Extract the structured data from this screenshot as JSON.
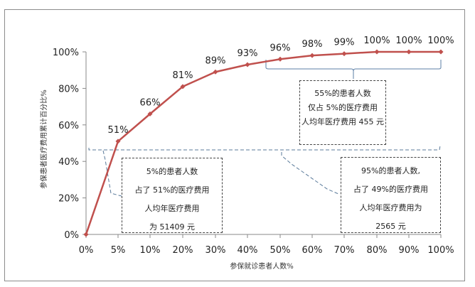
{
  "chart_data": {
    "type": "line",
    "title": "",
    "xlabel": "参保就诊患者人数%",
    "ylabel": "参保患者医疗费用累计百分比%",
    "categories": [
      "0%",
      "5%",
      "10%",
      "20%",
      "30%",
      "40%",
      "50%",
      "60%",
      "70%",
      "80%",
      "90%",
      "100%"
    ],
    "series": [
      {
        "name": "医疗费用累计百分比",
        "color": "#c0504d",
        "values": [
          0,
          51,
          66,
          81,
          89,
          93,
          96,
          98,
          99,
          100,
          100,
          100
        ],
        "data_labels": [
          "",
          "51%",
          "66%",
          "81%",
          "89%",
          "93%",
          "96%",
          "98%",
          "99%",
          "100%",
          "100%",
          "100%"
        ]
      }
    ],
    "y_ticks": [
      "0%",
      "20%",
      "40%",
      "60%",
      "80%",
      "100%"
    ],
    "ylim": [
      0,
      100
    ],
    "grid": false,
    "legend": "none",
    "annotations": [
      {
        "id": "top",
        "lines": [
          "55%的患者人数",
          "仅占 5%的医疗费用",
          "人均年医疗费用 455 元"
        ],
        "bracket": "covers 50%-100% x range"
      },
      {
        "id": "left",
        "lines": [
          "5%的患者人数",
          "占了 51%的医疗费用",
          "人均年医疗费用",
          "为 51409 元"
        ],
        "bracket": "covers 0%-5% x range"
      },
      {
        "id": "right",
        "lines": [
          "95%的患者人数,",
          "占了 49%的医疗费用",
          "人均年医疗费用为",
          "2565 元"
        ],
        "bracket": "covers 5%-100% x range"
      }
    ]
  },
  "colors": {
    "line": "#c0504d",
    "marker": "#c0504d",
    "bracket_top": "#4f81bd",
    "bracket_dashed": "#5a7a9a",
    "axis": "#888888"
  }
}
